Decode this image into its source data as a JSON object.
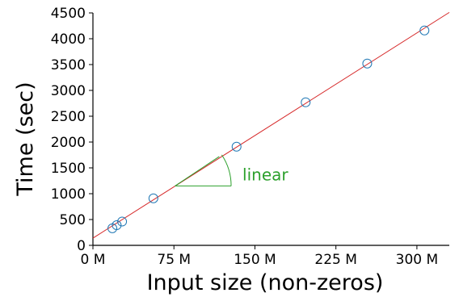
{
  "chart_data": {
    "type": "scatter",
    "xlabel": "Input size (non-zeros)",
    "ylabel": "Time (sec)",
    "xlim": [
      0,
      330
    ],
    "ylim": [
      0,
      4500
    ],
    "x_unit_suffix": " M",
    "x_ticks": [
      0,
      75,
      150,
      225,
      300
    ],
    "x_tick_labels": [
      "0 M",
      "75 M",
      "150 M",
      "225 M",
      "300 M"
    ],
    "y_ticks": [
      0,
      500,
      1000,
      1500,
      2000,
      2500,
      3000,
      3500,
      4000,
      4500
    ],
    "y_tick_labels": [
      "0",
      "500",
      "1000",
      "1500",
      "2000",
      "2500",
      "3000",
      "3500",
      "4000",
      "4500"
    ],
    "grid": false,
    "series": [
      {
        "marker": "circle-open",
        "color": "#1f77b4",
        "points": [
          {
            "x": 18,
            "y": 330
          },
          {
            "x": 22,
            "y": 390
          },
          {
            "x": 27,
            "y": 460
          },
          {
            "x": 56,
            "y": 910
          },
          {
            "x": 133,
            "y": 1910
          },
          {
            "x": 197,
            "y": 2770
          },
          {
            "x": 254,
            "y": 3520
          },
          {
            "x": 307,
            "y": 4160
          }
        ]
      },
      {
        "type": "line",
        "color": "#d62728",
        "points": [
          {
            "x": 0,
            "y": 140
          },
          {
            "x": 330,
            "y": 4510
          }
        ]
      }
    ],
    "annotations": [
      {
        "text": "linear",
        "color": "#2ca02c",
        "slope_segment_start": {
          "x": 76,
          "y": 1150
        },
        "slope_segment_end": {
          "x": 117,
          "y": 1720
        },
        "horizontal_end": {
          "x": 128,
          "y": 1150
        }
      }
    ]
  }
}
